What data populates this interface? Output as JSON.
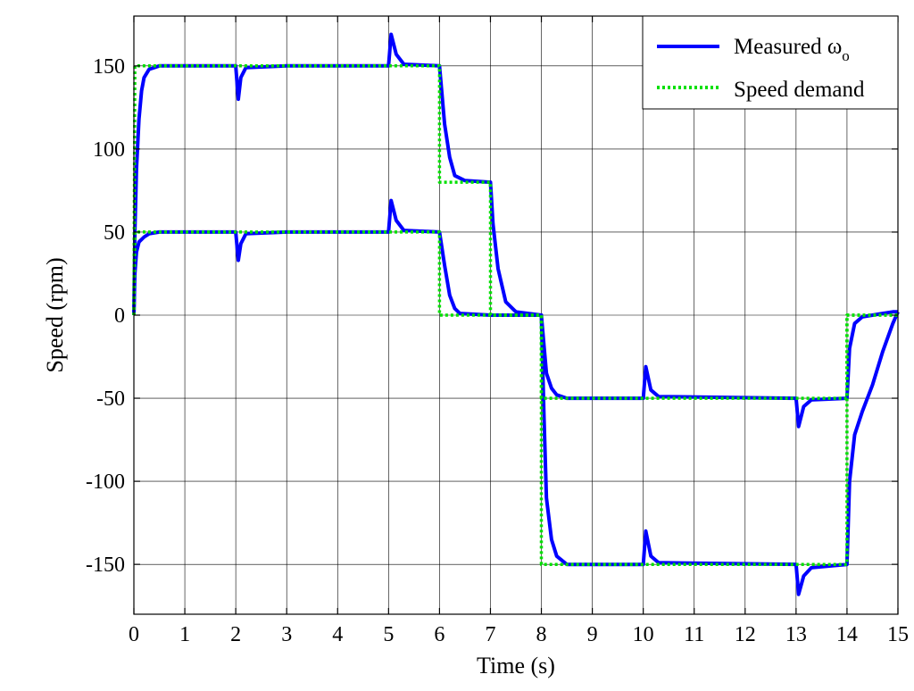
{
  "chart_data": {
    "type": "line",
    "title": "",
    "xlabel": "Time (s)",
    "ylabel": "Speed (rpm)",
    "xlim": [
      0,
      15
    ],
    "ylim": [
      -180,
      180
    ],
    "xticks": [
      0,
      1,
      2,
      3,
      4,
      5,
      6,
      7,
      8,
      9,
      10,
      11,
      12,
      13,
      14,
      15
    ],
    "yticks": [
      150,
      100,
      50,
      0,
      -50,
      -100,
      -150
    ],
    "grid": true,
    "legend_position": "top-right",
    "legend": [
      {
        "label": "Measured ω",
        "subscript": "o",
        "color": "#0000ff",
        "style": "solid"
      },
      {
        "label": "Speed demand",
        "subscript": "",
        "color": "#00e000",
        "style": "dotted"
      }
    ],
    "series": [
      {
        "name": "Measured ωo",
        "group": "Measured",
        "color": "#0000ff",
        "style": "solid",
        "x": [
          0,
          0.02,
          0.05,
          0.1,
          0.15,
          0.2,
          0.3,
          0.5,
          1,
          2,
          2.05,
          2.1,
          2.2,
          3,
          5,
          5.05,
          5.15,
          5.3,
          6,
          6.1,
          6.2,
          6.3,
          6.5,
          7,
          7.05,
          7.15,
          7.3,
          7.5,
          8,
          8.05,
          8.1,
          8.2,
          8.3,
          8.5,
          10,
          10.05,
          10.15,
          10.3,
          13,
          13.05,
          13.15,
          13.3,
          14,
          14.05,
          14.15,
          14.3,
          14.5,
          14.7,
          14.9,
          15
        ],
        "values": [
          0,
          50,
          88,
          118,
          135,
          143,
          148,
          150,
          150,
          150,
          130,
          143,
          149,
          150,
          150,
          169,
          157,
          151,
          150,
          115,
          95,
          84,
          81,
          80,
          55,
          28,
          8,
          2,
          0,
          -18,
          -35,
          -44,
          -48,
          -50,
          -50,
          -31,
          -45,
          -49,
          -50,
          -67,
          -55,
          -51,
          -50,
          -20,
          -5,
          -1,
          0,
          1,
          2,
          2
        ]
      },
      {
        "name": "Measured ωo",
        "group": "Measured",
        "color": "#0000ff",
        "style": "solid",
        "x": [
          0,
          0.02,
          0.05,
          0.1,
          0.2,
          0.3,
          0.5,
          1,
          2,
          2.05,
          2.1,
          2.2,
          3,
          5,
          5.05,
          5.15,
          5.3,
          6,
          6.1,
          6.2,
          6.3,
          6.4,
          7,
          8,
          8.05,
          8.1,
          8.2,
          8.3,
          8.5,
          10,
          10.05,
          10.15,
          10.3,
          13,
          13.05,
          13.15,
          13.3,
          14,
          14.05,
          14.15,
          14.3,
          14.5,
          14.7,
          14.9,
          15
        ],
        "values": [
          0,
          25,
          38,
          44,
          47,
          49,
          50,
          50,
          50,
          33,
          43,
          49,
          50,
          50,
          69,
          57,
          51,
          50,
          30,
          12,
          4,
          1,
          0,
          0,
          -60,
          -110,
          -135,
          -145,
          -150,
          -150,
          -130,
          -145,
          -149,
          -150,
          -168,
          -157,
          -152,
          -150,
          -100,
          -72,
          -58,
          -42,
          -22,
          -5,
          2
        ]
      },
      {
        "name": "Speed demand",
        "group": "Demand",
        "color": "#00e000",
        "style": "dotted",
        "x": [
          0,
          0.02,
          6,
          6,
          7,
          7,
          8,
          8,
          14,
          14,
          15
        ],
        "values": [
          0,
          150,
          150,
          80,
          80,
          0,
          0,
          -50,
          -50,
          0,
          0
        ]
      },
      {
        "name": "Speed demand",
        "group": "Demand",
        "color": "#00e000",
        "style": "dotted",
        "x": [
          0,
          0.02,
          6,
          6,
          8,
          8,
          14,
          14,
          15
        ],
        "values": [
          0,
          50,
          50,
          0,
          0,
          -150,
          -150,
          0,
          0
        ]
      }
    ]
  }
}
